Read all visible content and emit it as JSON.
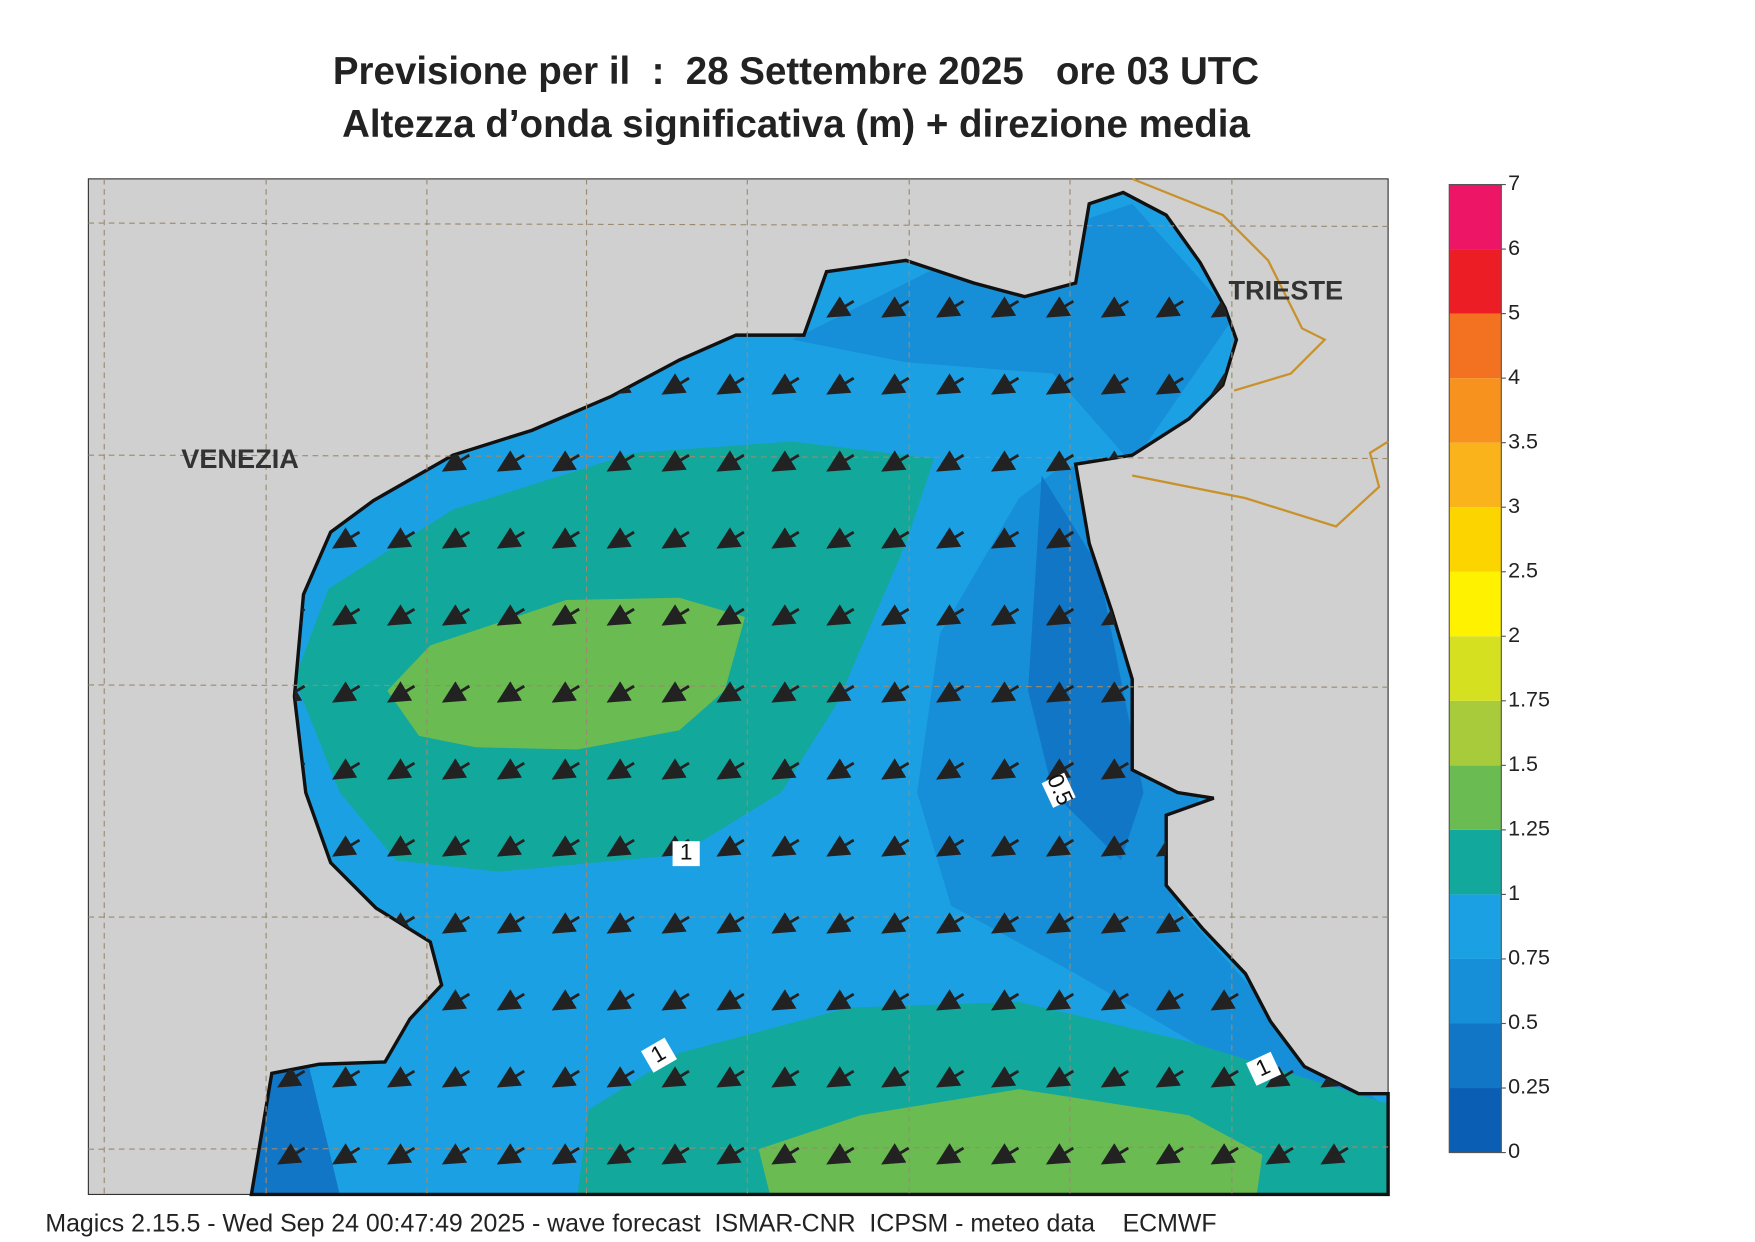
{
  "header": {
    "title": "Previsione per il  :  28 Settembre 2025   ore 03 UTC",
    "subtitle": "Altezza d’onda significativa (m) + direzione media"
  },
  "map": {
    "places": [
      "VENEZIA",
      "TRIESTE"
    ],
    "contour_labels": [
      0.5,
      1,
      1,
      1
    ]
  },
  "colorbar": {
    "levels": [
      0,
      0.25,
      0.5,
      0.75,
      1,
      1.25,
      1.5,
      1.75,
      2,
      2.5,
      3,
      3.5,
      4,
      5,
      6,
      7
    ],
    "colors": [
      "#0a5fb4",
      "#1276c6",
      "#168fd8",
      "#1ca0e4",
      "#12a89c",
      "#6abb52",
      "#a7cb3b",
      "#d5e021",
      "#fff200",
      "#fcd400",
      "#fbb31b",
      "#f7921e",
      "#f37221",
      "#ec1d25",
      "#ec1566"
    ]
  },
  "footer": "Magics 2.15.5 - Wed Sep 24 00:47:49 2025 - wave forecast  ISMAR-CNR  ICPSM - meteo data    ECMWF"
}
